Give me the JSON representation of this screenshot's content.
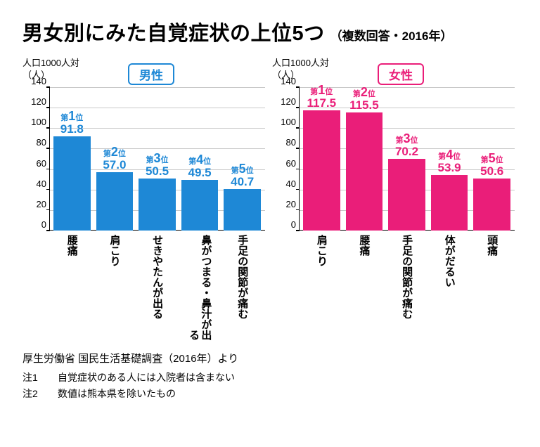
{
  "title": {
    "main": "男女別にみた自覚症状の上位5つ",
    "sub": "（複数回答・2016年）"
  },
  "yaxis_label_top": "人口1000人対",
  "yaxis_label_bottom": "（人）",
  "rank_prefix": "第",
  "rank_suffix": "位",
  "male": {
    "gender_label": "男性",
    "color": "#1e88d6",
    "text_color": "#1e88d6",
    "ymax": 140,
    "ytick_step": 20,
    "bars": [
      {
        "rank": "1",
        "label": "腰痛",
        "value": 91.8
      },
      {
        "rank": "2",
        "label": "肩こり",
        "value": 57.0,
        "value_text": "57.0"
      },
      {
        "rank": "3",
        "label": "せきやたんが出る",
        "value": 50.5
      },
      {
        "rank": "4",
        "label": "鼻がつまる・鼻汁が出る",
        "value": 49.5
      },
      {
        "rank": "5",
        "label": "手足の関節が痛む",
        "value": 40.7
      }
    ]
  },
  "female": {
    "gender_label": "女性",
    "color": "#ea1e79",
    "text_color": "#ea1e79",
    "ymax": 140,
    "ytick_step": 20,
    "bars": [
      {
        "rank": "1",
        "label": "肩こり",
        "value": 117.5
      },
      {
        "rank": "2",
        "label": "腰痛",
        "value": 115.5
      },
      {
        "rank": "3",
        "label": "手足の関節が痛む",
        "value": 70.2
      },
      {
        "rank": "4",
        "label": "体がだるい",
        "value": 53.9
      },
      {
        "rank": "5",
        "label": "頭痛",
        "value": 50.6
      }
    ]
  },
  "footer": {
    "source": "厚生労働省 国民生活基礎調査（2016年）より",
    "notes": [
      {
        "key": "注1",
        "text": "自覚症状のある人には入院者は含まない"
      },
      {
        "key": "注2",
        "text": "数値は熊本県を除いたもの"
      }
    ]
  },
  "colors": {
    "grid": "#c9c9c9",
    "axis": "#000000",
    "background": "#ffffff"
  }
}
